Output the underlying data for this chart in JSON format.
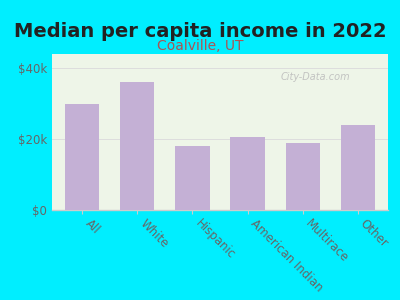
{
  "title": "Median per capita income in 2022",
  "subtitle": "Coalville, UT",
  "categories": [
    "All",
    "White",
    "Hispanic",
    "American Indian",
    "Multirace",
    "Other"
  ],
  "values": [
    30000,
    36000,
    18000,
    20500,
    19000,
    24000
  ],
  "bar_color": "#c4b0d5",
  "background_color": "#00eeff",
  "plot_bg_color": "#eef5e8",
  "title_color": "#222222",
  "subtitle_color": "#aa5555",
  "ytick_labels": [
    "$0",
    "$20k",
    "$40k"
  ],
  "ytick_values": [
    0,
    20000,
    40000
  ],
  "ylim": [
    0,
    44000
  ],
  "watermark": "City-Data.com",
  "xlabel_rotation": -45,
  "title_fontsize": 14,
  "subtitle_fontsize": 10,
  "tick_fontsize": 8.5,
  "axis_label_color": "#666666",
  "grid_color": "#dddddd",
  "spine_color": "#cccccc"
}
